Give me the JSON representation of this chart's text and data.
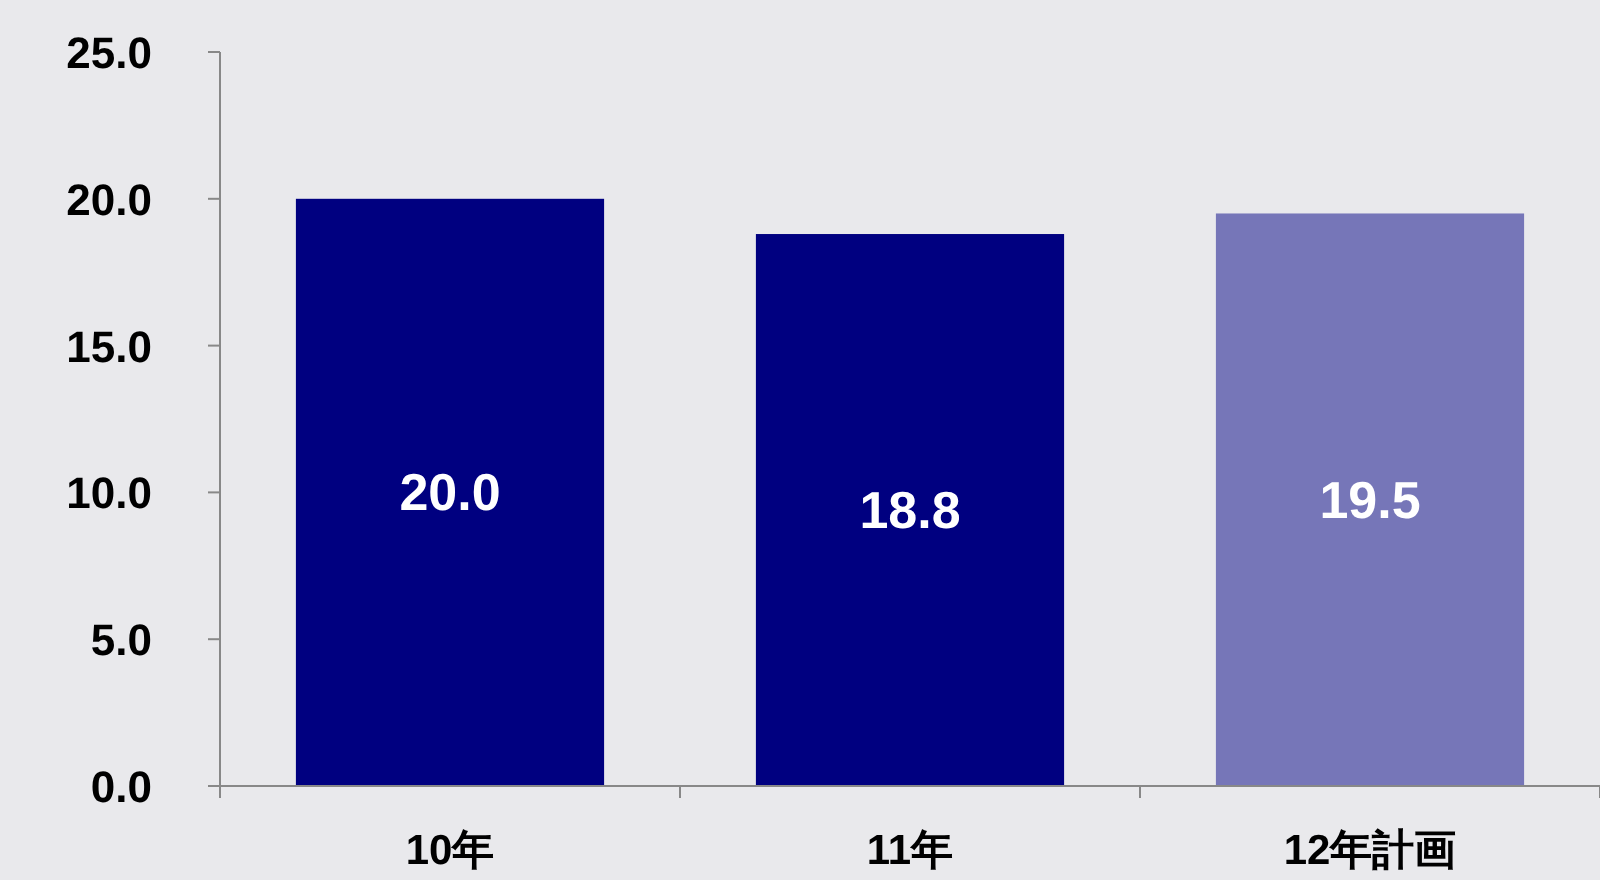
{
  "chart_data": {
    "type": "bar",
    "categories": [
      "10年",
      "11年",
      "12年計画"
    ],
    "values": [
      20.0,
      18.8,
      19.5
    ],
    "colors": [
      "#000080",
      "#000080",
      "#7676b8"
    ],
    "value_labels": [
      "20.0",
      "18.8",
      "19.5"
    ],
    "ylim": [
      0,
      25
    ],
    "yticks": [
      {
        "value": 0,
        "label": "0.0"
      },
      {
        "value": 5,
        "label": "5.0"
      },
      {
        "value": 10,
        "label": "10.0"
      },
      {
        "value": 15,
        "label": "15.0"
      },
      {
        "value": 20,
        "label": "20.0"
      },
      {
        "value": 25,
        "label": "25.0"
      }
    ]
  }
}
